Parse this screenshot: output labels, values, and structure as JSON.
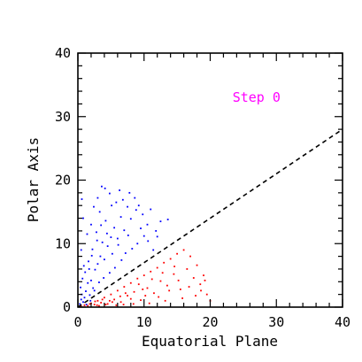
{
  "chart_data": {
    "type": "scatter",
    "title": "",
    "xlabel": "Equatorial Plane",
    "ylabel": "Polar Axis",
    "xlim": [
      0,
      40
    ],
    "ylim": [
      0,
      40
    ],
    "x_ticks": [
      0,
      10,
      20,
      30,
      40
    ],
    "y_ticks": [
      0,
      10,
      20,
      30,
      40
    ],
    "grid": false,
    "annotation": {
      "text": "Step 0",
      "x": 27,
      "y": 33,
      "color": "#ff00ff"
    },
    "reference_line": {
      "style": "dashed",
      "color": "#000000",
      "points": [
        [
          0,
          0
        ],
        [
          40,
          28
        ]
      ]
    },
    "series": [
      {
        "color": "#0000ff",
        "points": [
          [
            0.3,
            0.5
          ],
          [
            0.5,
            1.2
          ],
          [
            0.6,
            2.0
          ],
          [
            0.8,
            0.8
          ],
          [
            1.0,
            1.5
          ],
          [
            1.2,
            2.5
          ],
          [
            0.4,
            3.1
          ],
          [
            1.5,
            3.8
          ],
          [
            0.7,
            4.5
          ],
          [
            1.8,
            1.9
          ],
          [
            2.0,
            4.2
          ],
          [
            2.3,
            3.0
          ],
          [
            1.1,
            5.5
          ],
          [
            2.6,
            5.9
          ],
          [
            3.0,
            6.8
          ],
          [
            1.6,
            7.2
          ],
          [
            3.4,
            8.0
          ],
          [
            2.2,
            9.1
          ],
          [
            4.0,
            7.5
          ],
          [
            3.7,
            10.2
          ],
          [
            4.5,
            9.6
          ],
          [
            5.0,
            11.0
          ],
          [
            2.8,
            11.8
          ],
          [
            5.5,
            12.5
          ],
          [
            6.0,
            10.8
          ],
          [
            4.2,
            13.6
          ],
          [
            6.5,
            14.2
          ],
          [
            7.0,
            12.1
          ],
          [
            3.3,
            15.0
          ],
          [
            7.5,
            15.8
          ],
          [
            5.8,
            16.5
          ],
          [
            8.0,
            13.9
          ],
          [
            8.6,
            17.2
          ],
          [
            4.8,
            17.9
          ],
          [
            9.2,
            16.0
          ],
          [
            6.3,
            18.4
          ],
          [
            3.6,
            19.0
          ],
          [
            9.8,
            14.6
          ],
          [
            10.5,
            13.0
          ],
          [
            11.0,
            15.4
          ],
          [
            11.8,
            12.0
          ],
          [
            12.5,
            13.5
          ],
          [
            13.6,
            13.8
          ],
          [
            10.0,
            11.2
          ],
          [
            9.0,
            10.0
          ],
          [
            8.2,
            9.2
          ],
          [
            7.2,
            8.5
          ],
          [
            6.6,
            7.4
          ],
          [
            5.6,
            6.2
          ],
          [
            4.8,
            5.4
          ],
          [
            3.9,
            4.6
          ],
          [
            3.2,
            3.9
          ],
          [
            2.5,
            2.6
          ],
          [
            1.9,
            1.0
          ],
          [
            1.3,
            0.4
          ],
          [
            0.9,
            6.5
          ],
          [
            0.5,
            9.0
          ],
          [
            1.4,
            11.5
          ],
          [
            0.8,
            14.0
          ],
          [
            0.6,
            17.0
          ],
          [
            2.0,
            13.0
          ],
          [
            2.4,
            15.8
          ],
          [
            3.0,
            17.2
          ],
          [
            4.1,
            18.7
          ],
          [
            5.1,
            16.0
          ],
          [
            6.8,
            16.9
          ],
          [
            7.8,
            18.0
          ],
          [
            8.8,
            15.3
          ],
          [
            9.5,
            12.4
          ],
          [
            10.6,
            10.4
          ],
          [
            11.4,
            9.0
          ],
          [
            12.0,
            11.1
          ],
          [
            7.6,
            11.3
          ],
          [
            6.1,
            9.8
          ],
          [
            5.2,
            8.4
          ],
          [
            4.4,
            11.6
          ],
          [
            3.5,
            12.9
          ],
          [
            2.9,
            10.5
          ],
          [
            2.1,
            8.1
          ],
          [
            1.7,
            6.0
          ]
        ]
      },
      {
        "color": "#ff0000",
        "points": [
          [
            0.5,
            0.1
          ],
          [
            1.0,
            0.3
          ],
          [
            1.5,
            0.2
          ],
          [
            2.0,
            0.6
          ],
          [
            2.5,
            0.4
          ],
          [
            3.0,
            1.0
          ],
          [
            3.5,
            0.7
          ],
          [
            4.0,
            1.5
          ],
          [
            4.5,
            0.5
          ],
          [
            5.0,
            2.0
          ],
          [
            5.5,
            1.2
          ],
          [
            6.0,
            2.6
          ],
          [
            6.5,
            0.8
          ],
          [
            7.0,
            3.2
          ],
          [
            7.5,
            1.8
          ],
          [
            8.0,
            3.8
          ],
          [
            8.5,
            2.4
          ],
          [
            9.0,
            4.5
          ],
          [
            9.5,
            1.1
          ],
          [
            10.0,
            5.0
          ],
          [
            10.5,
            3.0
          ],
          [
            11.0,
            5.6
          ],
          [
            11.5,
            2.2
          ],
          [
            12.0,
            6.2
          ],
          [
            12.5,
            4.1
          ],
          [
            13.0,
            7.0
          ],
          [
            13.5,
            3.4
          ],
          [
            14.0,
            7.6
          ],
          [
            14.5,
            5.2
          ],
          [
            15.0,
            8.4
          ],
          [
            15.5,
            2.8
          ],
          [
            16.0,
            9.0
          ],
          [
            16.5,
            6.0
          ],
          [
            17.0,
            8.0
          ],
          [
            17.5,
            4.6
          ],
          [
            18.0,
            6.6
          ],
          [
            18.5,
            3.6
          ],
          [
            19.0,
            5.0
          ],
          [
            19.5,
            2.0
          ],
          [
            20.0,
            1.0
          ],
          [
            3.2,
            0.2
          ],
          [
            5.8,
            0.3
          ],
          [
            8.4,
            0.5
          ],
          [
            10.8,
            0.6
          ],
          [
            13.2,
            1.0
          ],
          [
            15.8,
            1.4
          ],
          [
            17.8,
            1.8
          ],
          [
            12.2,
            1.6
          ],
          [
            9.8,
            2.8
          ],
          [
            7.2,
            2.2
          ],
          [
            4.8,
            1.0
          ],
          [
            2.6,
            0.9
          ],
          [
            6.4,
            1.7
          ],
          [
            11.2,
            4.4
          ],
          [
            14.6,
            6.4
          ],
          [
            16.8,
            3.2
          ],
          [
            18.6,
            2.6
          ],
          [
            19.2,
            4.2
          ],
          [
            13.8,
            2.6
          ],
          [
            9.2,
            3.6
          ],
          [
            8.0,
            1.3
          ],
          [
            6.9,
            0.4
          ],
          [
            5.2,
            0.8
          ],
          [
            4.2,
            0.4
          ],
          [
            3.7,
            1.2
          ],
          [
            1.8,
            0.5
          ],
          [
            2.9,
            0.3
          ],
          [
            10.2,
            1.8
          ],
          [
            12.8,
            5.4
          ],
          [
            15.2,
            4.2
          ]
        ]
      }
    ]
  }
}
